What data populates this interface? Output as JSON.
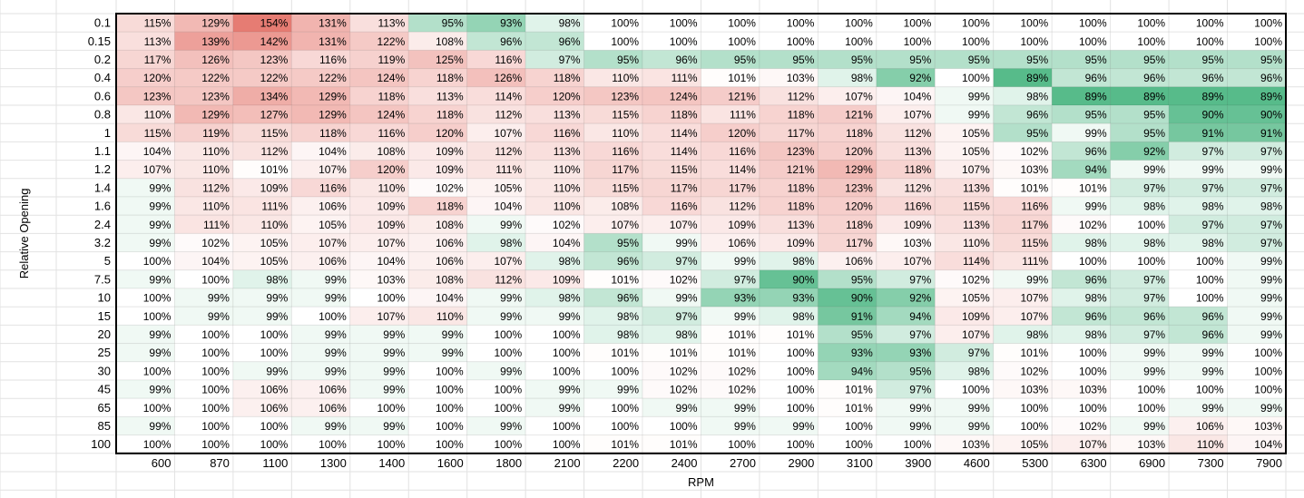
{
  "chart_data": {
    "type": "heatmap",
    "title": "",
    "xlabel": "RPM",
    "ylabel": "Relative Opening",
    "value_suffix": "%",
    "color_scale": {
      "low": "#57bb8a",
      "mid": "#ffffff",
      "high": "#e67c73",
      "low_value": 89,
      "mid_value": 100,
      "high_value": 154
    },
    "x": [
      "600",
      "870",
      "1100",
      "1300",
      "1400",
      "1600",
      "1800",
      "2100",
      "2200",
      "2400",
      "2700",
      "2900",
      "3100",
      "3900",
      "4600",
      "5300",
      "6300",
      "6900",
      "7300",
      "7900"
    ],
    "y": [
      "0.1",
      "0.15",
      "0.2",
      "0.4",
      "0.6",
      "0.8",
      "1",
      "1.1",
      "1.2",
      "1.4",
      "1.6",
      "2.4",
      "3.2",
      "5",
      "7.5",
      "10",
      "15",
      "20",
      "25",
      "30",
      "45",
      "65",
      "85",
      "100"
    ],
    "values": [
      [
        115,
        129,
        154,
        131,
        113,
        95,
        93,
        98,
        100,
        100,
        100,
        100,
        100,
        100,
        100,
        100,
        100,
        100,
        100,
        100
      ],
      [
        113,
        139,
        142,
        131,
        122,
        108,
        96,
        96,
        100,
        100,
        100,
        100,
        100,
        100,
        100,
        100,
        100,
        100,
        100,
        100
      ],
      [
        117,
        126,
        123,
        116,
        119,
        125,
        116,
        97,
        95,
        96,
        95,
        95,
        95,
        95,
        95,
        95,
        95,
        95,
        95,
        95
      ],
      [
        120,
        122,
        122,
        122,
        124,
        118,
        126,
        118,
        110,
        111,
        101,
        103,
        98,
        92,
        100,
        89,
        96,
        96,
        96,
        96
      ],
      [
        123,
        123,
        134,
        129,
        118,
        113,
        114,
        120,
        123,
        124,
        121,
        112,
        107,
        104,
        99,
        98,
        89,
        89,
        89,
        89
      ],
      [
        110,
        129,
        127,
        129,
        124,
        118,
        112,
        113,
        115,
        118,
        111,
        118,
        121,
        107,
        99,
        96,
        95,
        95,
        90,
        90
      ],
      [
        115,
        119,
        115,
        118,
        116,
        120,
        107,
        116,
        110,
        114,
        120,
        117,
        118,
        112,
        105,
        95,
        99,
        95,
        91,
        91
      ],
      [
        104,
        110,
        112,
        104,
        108,
        109,
        112,
        113,
        116,
        114,
        116,
        123,
        120,
        113,
        105,
        102,
        96,
        92,
        97,
        97
      ],
      [
        107,
        110,
        101,
        107,
        120,
        109,
        111,
        110,
        117,
        115,
        114,
        121,
        129,
        118,
        107,
        103,
        94,
        99,
        99,
        99
      ],
      [
        99,
        112,
        109,
        116,
        110,
        102,
        105,
        110,
        115,
        117,
        117,
        118,
        123,
        112,
        113,
        101,
        101,
        97,
        97,
        97
      ],
      [
        99,
        110,
        111,
        106,
        109,
        118,
        104,
        110,
        108,
        116,
        112,
        118,
        120,
        116,
        115,
        116,
        99,
        98,
        98,
        98
      ],
      [
        99,
        111,
        110,
        105,
        109,
        108,
        99,
        102,
        107,
        107,
        109,
        113,
        118,
        109,
        113,
        117,
        102,
        100,
        97,
        97
      ],
      [
        99,
        102,
        105,
        107,
        107,
        106,
        98,
        104,
        95,
        99,
        106,
        109,
        117,
        103,
        110,
        115,
        98,
        98,
        98,
        97
      ],
      [
        100,
        104,
        105,
        106,
        104,
        106,
        107,
        98,
        96,
        97,
        99,
        98,
        106,
        107,
        114,
        111,
        100,
        100,
        100,
        99
      ],
      [
        99,
        100,
        98,
        99,
        103,
        108,
        112,
        109,
        101,
        102,
        97,
        90,
        95,
        97,
        102,
        99,
        96,
        97,
        100,
        99
      ],
      [
        100,
        99,
        99,
        99,
        100,
        104,
        99,
        98,
        96,
        99,
        93,
        93,
        90,
        92,
        105,
        107,
        98,
        97,
        100,
        99
      ],
      [
        100,
        99,
        99,
        100,
        107,
        110,
        99,
        99,
        98,
        97,
        99,
        98,
        91,
        94,
        109,
        107,
        96,
        96,
        96,
        99
      ],
      [
        99,
        100,
        100,
        99,
        99,
        99,
        100,
        100,
        98,
        98,
        101,
        101,
        95,
        97,
        107,
        98,
        98,
        97,
        96,
        99
      ],
      [
        99,
        100,
        100,
        99,
        99,
        99,
        100,
        100,
        101,
        101,
        101,
        100,
        93,
        93,
        97,
        101,
        100,
        99,
        99,
        100
      ],
      [
        100,
        100,
        99,
        99,
        99,
        100,
        99,
        100,
        100,
        102,
        102,
        100,
        94,
        95,
        98,
        102,
        100,
        99,
        99,
        100
      ],
      [
        99,
        100,
        106,
        106,
        99,
        100,
        100,
        99,
        99,
        102,
        102,
        100,
        101,
        97,
        100,
        103,
        103,
        100,
        100,
        100
      ],
      [
        100,
        100,
        106,
        106,
        100,
        100,
        100,
        99,
        100,
        99,
        99,
        100,
        101,
        99,
        99,
        100,
        100,
        100,
        99,
        99
      ],
      [
        99,
        100,
        100,
        99,
        99,
        100,
        99,
        100,
        100,
        100,
        99,
        99,
        100,
        99,
        99,
        100,
        102,
        99,
        106,
        103
      ],
      [
        100,
        100,
        100,
        100,
        100,
        100,
        100,
        100,
        101,
        101,
        100,
        100,
        100,
        100,
        103,
        105,
        107,
        103,
        110,
        104
      ]
    ]
  }
}
